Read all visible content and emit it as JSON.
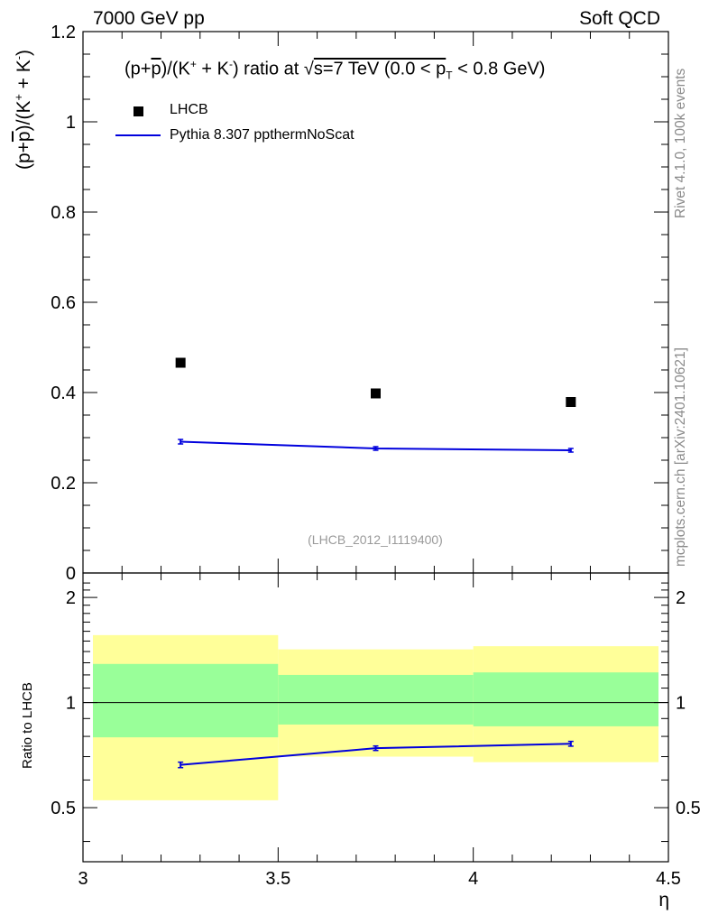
{
  "header": {
    "left": "7000 GeV pp",
    "right": "Soft QCD"
  },
  "side_text": {
    "top": "Rivet 4.1.0,  100k events",
    "bottom": "mcplots.cern.ch [arXiv:2401.10621]"
  },
  "title": {
    "text": "(p+p̄)/(K⁺ + K⁻) ratio at √s=7 TeV (0.0 < p_T < 0.8 GeV)",
    "part_open": "(p+",
    "part_p": "p",
    "part_k": ")/(K",
    "part_plus": "+",
    "part_k2": " + K",
    "part_minus": "-",
    "part_mid": ") ratio at ",
    "part_sqrt": "√",
    "part_s": "s=7 TeV (0.0 < p",
    "part_T": "T",
    "part_end": " < 0.8 GeV)"
  },
  "watermark": "(LHCB_2012_I1119400)",
  "labels": {
    "y_main": "(p+p̄)/(K⁺ + K⁻)",
    "y_main_open": "(p+",
    "y_main_p": "p",
    "y_main_k": ")/(K",
    "y_main_plus": "+",
    "y_main_k2": " + K",
    "y_main_minus": "-",
    "y_main_close": ")",
    "y_ratio": "Ratio to LHCB",
    "x": "η"
  },
  "legend": {
    "data_label": "LHCB",
    "mc_label": "Pythia 8.307 ppthermNoScat"
  },
  "colors": {
    "mc": "#0000dd",
    "data": "#000000",
    "band_inner": "#99ff99",
    "band_outer": "#ffff99"
  },
  "chart_data": [
    {
      "type": "scatter",
      "panel": "main",
      "xlim": [
        3.0,
        4.5
      ],
      "ylim": [
        0.0,
        1.2
      ],
      "xticks": [
        3,
        3.5,
        4,
        4.5
      ],
      "yticks": [
        0,
        0.2,
        0.4,
        0.6,
        0.8,
        1,
        1.2
      ],
      "ytick_labels": [
        "0",
        "0.2",
        "0.4",
        "0.6",
        "0.8",
        "1",
        "1.2"
      ],
      "series": [
        {
          "name": "LHCB",
          "style": "markers",
          "x": [
            3.25,
            3.75,
            4.25
          ],
          "y": [
            0.466,
            0.398,
            0.379
          ]
        },
        {
          "name": "Pythia 8.307 ppthermNoScat",
          "style": "line",
          "x": [
            3.25,
            3.75,
            4.25
          ],
          "y": [
            0.291,
            0.276,
            0.272
          ],
          "yerr": [
            0.005,
            0.004,
            0.004
          ]
        }
      ]
    },
    {
      "type": "line",
      "panel": "ratio",
      "xlim": [
        3.0,
        4.5
      ],
      "ylim": [
        0.35,
        2.35
      ],
      "yscale": "log",
      "xticks": [
        3,
        3.5,
        4,
        4.5
      ],
      "xtick_labels": [
        "3",
        "3.5",
        "4",
        "4.5"
      ],
      "yticks": [
        0.5,
        1,
        2
      ],
      "ytick_labels": [
        "0.5",
        "1",
        "2"
      ],
      "reference_line": 1.0,
      "bands": [
        {
          "xlo": 3.0,
          "xhi": 3.5,
          "inner": [
            0.795,
            1.29
          ],
          "outer": [
            0.525,
            1.56
          ]
        },
        {
          "xlo": 3.5,
          "xhi": 4.0,
          "inner": [
            0.865,
            1.2
          ],
          "outer": [
            0.7,
            1.42
          ]
        },
        {
          "xlo": 4.0,
          "xhi": 4.5,
          "inner": [
            0.855,
            1.22
          ],
          "outer": [
            0.675,
            1.45
          ]
        }
      ],
      "series": [
        {
          "name": "Pythia 8.307 ppthermNoScat / LHCB",
          "x": [
            3.25,
            3.75,
            4.25
          ],
          "y": [
            0.663,
            0.74,
            0.762
          ],
          "yerr": [
            0.012,
            0.011,
            0.012
          ]
        }
      ]
    }
  ]
}
